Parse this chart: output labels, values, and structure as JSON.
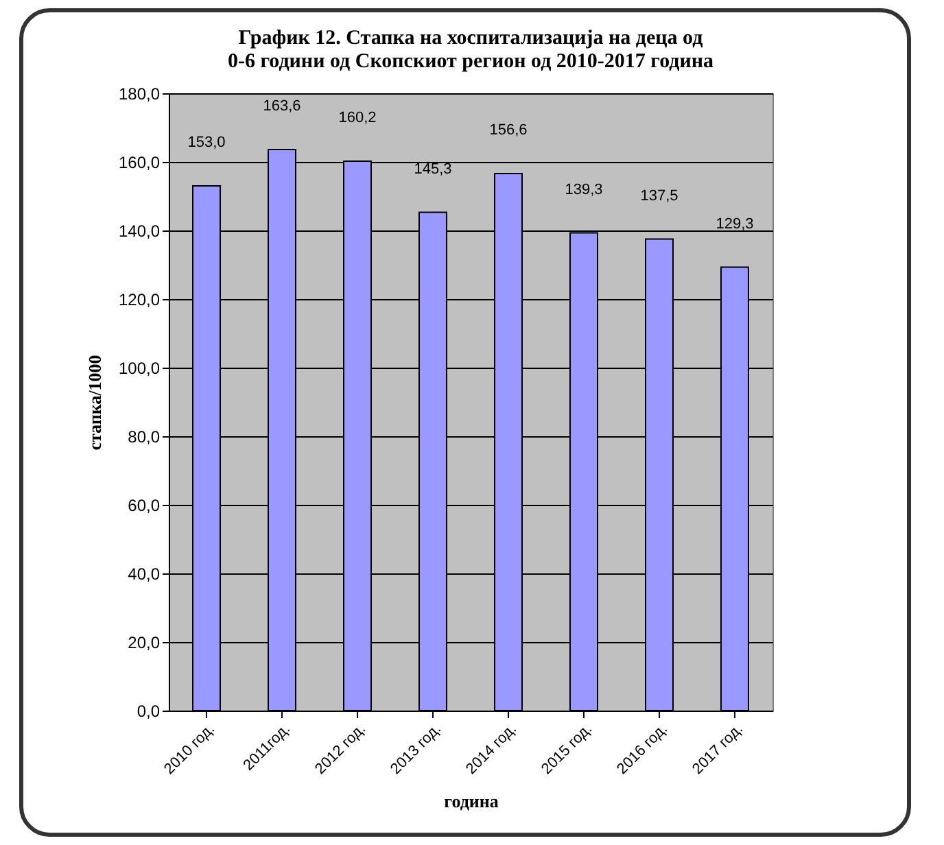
{
  "chart_data": {
    "type": "bar",
    "title": "График 12. Стапка на хоспитализација на деца од 0-6 години од Скопскиот регион од 2010-2017 година",
    "xlabel": "година",
    "ylabel": "стапка/1000",
    "categories": [
      "2010 год.",
      "2011год.",
      "2012 год.",
      "2013 год.",
      "2014 год.",
      "2015 год.",
      "2016 год.",
      "2017 год."
    ],
    "values": [
      153.0,
      163.6,
      160.2,
      145.3,
      156.6,
      139.3,
      137.5,
      129.3
    ],
    "value_labels": [
      "153,0",
      "163,6",
      "160,2",
      "145,3",
      "156,6",
      "139,3",
      "137,5",
      "129,3"
    ],
    "color": "#9999ff",
    "ylim": [
      0,
      180
    ],
    "yticks": [
      {
        "value": 0,
        "label": "0,0"
      },
      {
        "value": 20,
        "label": "20,0"
      },
      {
        "value": 40,
        "label": "40,0"
      },
      {
        "value": 60,
        "label": "60,0"
      },
      {
        "value": 80,
        "label": "80,0"
      },
      {
        "value": 100,
        "label": "100,0"
      },
      {
        "value": 120,
        "label": "120,0"
      },
      {
        "value": 140,
        "label": "140,0"
      },
      {
        "value": 160,
        "label": "160,0"
      },
      {
        "value": 180,
        "label": "180,0"
      }
    ],
    "grid": "y"
  }
}
